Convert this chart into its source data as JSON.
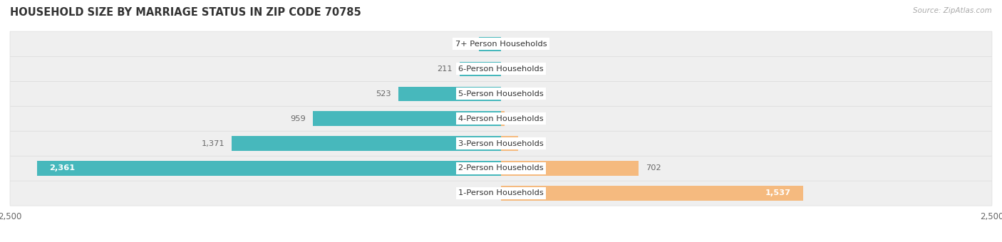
{
  "title": "HOUSEHOLD SIZE BY MARRIAGE STATUS IN ZIP CODE 70785",
  "source": "Source: ZipAtlas.com",
  "categories": [
    "1-Person Households",
    "2-Person Households",
    "3-Person Households",
    "4-Person Households",
    "5-Person Households",
    "6-Person Households",
    "7+ Person Households"
  ],
  "family_values": [
    0,
    2361,
    1371,
    959,
    523,
    211,
    114
  ],
  "nonfamily_values": [
    1537,
    702,
    87,
    19,
    0,
    0,
    0
  ],
  "family_color": "#47B8BC",
  "nonfamily_color": "#F5BA7F",
  "xlim": 2500,
  "bar_height": 0.58,
  "row_bg_color": "#EFEFEF",
  "row_bg_color_alt": "#F8F8F8",
  "title_fontsize": 10.5,
  "label_fontsize": 8.2,
  "tick_fontsize": 8.5,
  "value_label_threshold": 2000
}
